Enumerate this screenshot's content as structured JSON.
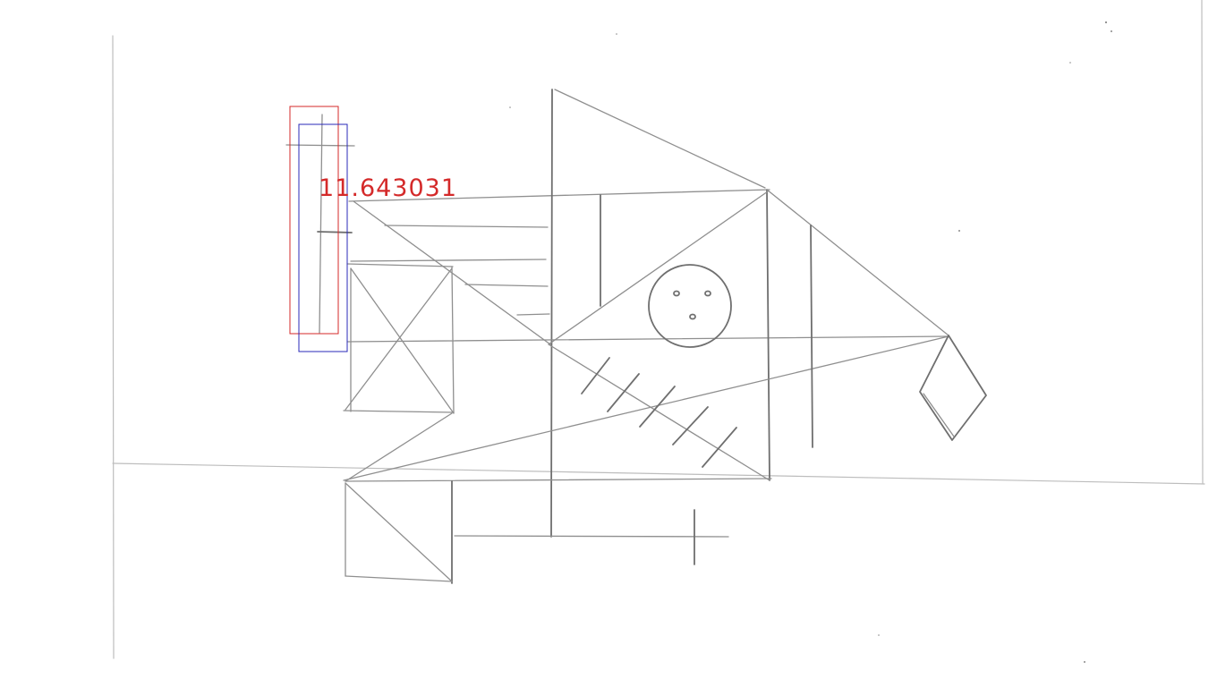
{
  "annotation": {
    "score_label": "11.643031",
    "primary_box_color": "#d42a2a",
    "secondary_box_color": "#2a2ab8",
    "label_color": "#d42a2a"
  },
  "drawing": {
    "background_color": "#ffffff",
    "pencil_color": "#8f8f8f"
  }
}
